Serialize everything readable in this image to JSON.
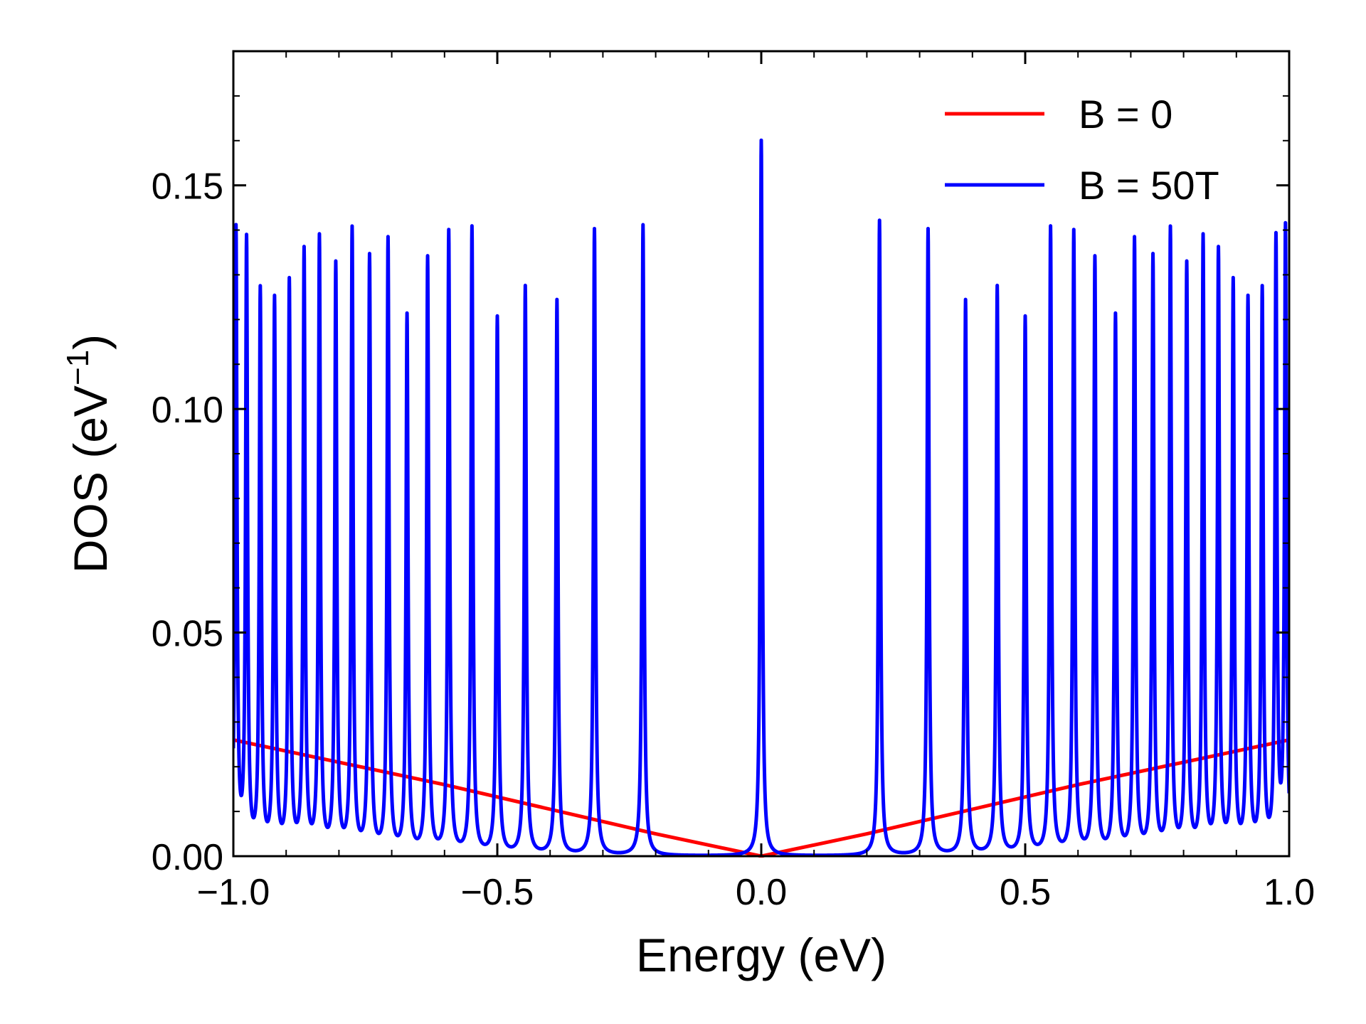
{
  "chart_data": {
    "type": "line",
    "title": "",
    "xlabel": "Energy (eV)",
    "ylabel_main": "DOS (eV",
    "ylabel_sup": "−1",
    "ylabel_close": ")",
    "xlim": [
      -1.0,
      1.0
    ],
    "ylim": [
      0.0,
      0.18
    ],
    "xticks": [
      -1.0,
      -0.5,
      0.0,
      0.5,
      1.0
    ],
    "xtick_labels": [
      "−1.0",
      "−0.5",
      "0.0",
      "0.5",
      "1.0"
    ],
    "yticks": [
      0.0,
      0.05,
      0.1,
      0.15
    ],
    "ytick_labels": [
      "0.00",
      "0.05",
      "0.10",
      "0.15"
    ],
    "grid": false,
    "legend_position": "top-right",
    "series": [
      {
        "name": "B = 0",
        "color": "#ff0000",
        "x": [
          -1.0,
          -0.8,
          -0.6,
          -0.4,
          -0.2,
          0.0,
          0.2,
          0.4,
          0.6,
          0.8,
          1.0
        ],
        "y": [
          0.026,
          0.021,
          0.016,
          0.0105,
          0.005,
          0.0,
          0.005,
          0.0105,
          0.016,
          0.021,
          0.026
        ]
      },
      {
        "name": "B = 50T",
        "color": "#0000ff",
        "peak_width": 0.0022,
        "peaks": [
          {
            "x": 0.0,
            "y": 0.16
          },
          {
            "x": 0.224,
            "y": 0.142
          },
          {
            "x": -0.224,
            "y": 0.141
          },
          {
            "x": 0.316,
            "y": 0.14
          },
          {
            "x": -0.316,
            "y": 0.14
          },
          {
            "x": 0.387,
            "y": 0.124
          },
          {
            "x": -0.387,
            "y": 0.124
          },
          {
            "x": 0.447,
            "y": 0.127
          },
          {
            "x": -0.447,
            "y": 0.127
          },
          {
            "x": 0.5,
            "y": 0.12
          },
          {
            "x": -0.5,
            "y": 0.12
          },
          {
            "x": 0.548,
            "y": 0.14
          },
          {
            "x": -0.548,
            "y": 0.14
          },
          {
            "x": 0.592,
            "y": 0.139
          },
          {
            "x": -0.592,
            "y": 0.139
          },
          {
            "x": 0.632,
            "y": 0.133
          },
          {
            "x": -0.632,
            "y": 0.133
          },
          {
            "x": 0.671,
            "y": 0.12
          },
          {
            "x": -0.671,
            "y": 0.12
          },
          {
            "x": 0.707,
            "y": 0.137
          },
          {
            "x": -0.707,
            "y": 0.137
          },
          {
            "x": 0.742,
            "y": 0.133
          },
          {
            "x": -0.742,
            "y": 0.133
          },
          {
            "x": 0.775,
            "y": 0.139
          },
          {
            "x": -0.775,
            "y": 0.139
          },
          {
            "x": 0.806,
            "y": 0.131
          },
          {
            "x": -0.806,
            "y": 0.131
          },
          {
            "x": 0.837,
            "y": 0.137
          },
          {
            "x": -0.837,
            "y": 0.137
          },
          {
            "x": 0.866,
            "y": 0.134
          },
          {
            "x": -0.866,
            "y": 0.134
          },
          {
            "x": 0.894,
            "y": 0.127
          },
          {
            "x": -0.894,
            "y": 0.127
          },
          {
            "x": 0.922,
            "y": 0.123
          },
          {
            "x": -0.922,
            "y": 0.123
          },
          {
            "x": 0.949,
            "y": 0.125
          },
          {
            "x": -0.949,
            "y": 0.125
          },
          {
            "x": 0.975,
            "y": 0.136
          },
          {
            "x": -0.975,
            "y": 0.136
          },
          {
            "x": 0.993,
            "y": 0.139
          },
          {
            "x": -0.995,
            "y": 0.139
          }
        ]
      }
    ]
  }
}
